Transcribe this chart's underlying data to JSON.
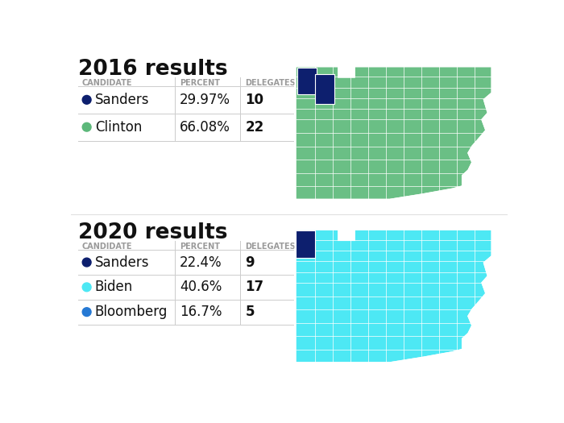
{
  "title_2016": "2016 results",
  "title_2020": "2020 results",
  "header_candidate": "CANDIDATE",
  "header_percent": "PERCENT",
  "header_delegates": "DELEGATES",
  "candidates_2016": [
    {
      "name": "Sanders",
      "percent": "29.97%",
      "delegates": "10",
      "color": "#0d1f6e"
    },
    {
      "name": "Clinton",
      "percent": "66.08%",
      "delegates": "22",
      "color": "#5cb87a"
    }
  ],
  "candidates_2020": [
    {
      "name": "Sanders",
      "percent": "22.4%",
      "delegates": "9",
      "color": "#0d1f6e"
    },
    {
      "name": "Biden",
      "percent": "40.6%",
      "delegates": "17",
      "color": "#4de8f4"
    },
    {
      "name": "Bloomberg",
      "percent": "16.7%",
      "delegates": "5",
      "color": "#2579d4"
    }
  ],
  "bg_color": "#ffffff",
  "line_color": "#cccccc",
  "header_text_color": "#9a9a9a",
  "candidate_text_color": "#111111",
  "title_text_color": "#111111",
  "map_green": "#6abf85",
  "map_cyan": "#4de8f4",
  "map_dark_navy": "#0d1f6e",
  "map_border": "#ffffff",
  "section_divider_color": "#e0e0e0"
}
